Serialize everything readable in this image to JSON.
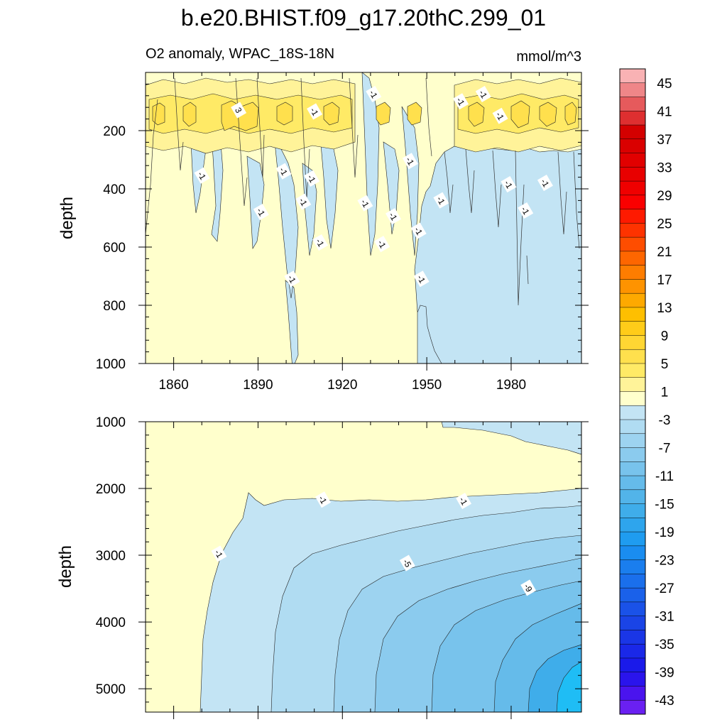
{
  "chart_data": [
    {
      "type": "heatmap",
      "name": "upper-ocean",
      "title": "b.e20.BHIST.f09_g17.20thC.299_01",
      "left_label": "O2 anomaly, WPAC_18S-18N",
      "right_label": "mmol/m^3",
      "xlabel": "",
      "ylabel": "depth",
      "xlim": [
        1850,
        2005
      ],
      "ylim": [
        1000,
        0
      ],
      "x_ticks": [
        1860,
        1890,
        1920,
        1950,
        1980
      ],
      "y_ticks": [
        200,
        400,
        600,
        800,
        1000
      ],
      "contour_labels": [
        {
          "text": "-1",
          "x": 1870,
          "y": 355
        },
        {
          "text": "3",
          "x": 1883,
          "y": 130
        },
        {
          "text": "-1",
          "x": 1910,
          "y": 135
        },
        {
          "text": "-1",
          "x": 1899,
          "y": 340
        },
        {
          "text": "-1",
          "x": 1909,
          "y": 365
        },
        {
          "text": "-1",
          "x": 1906,
          "y": 445
        },
        {
          "text": "-1",
          "x": 1891,
          "y": 480
        },
        {
          "text": "-1",
          "x": 1912,
          "y": 585
        },
        {
          "text": "-1",
          "x": 1902,
          "y": 710
        },
        {
          "text": "-1",
          "x": 1931,
          "y": 75
        },
        {
          "text": "-1",
          "x": 1928,
          "y": 450
        },
        {
          "text": "-1",
          "x": 1938,
          "y": 495
        },
        {
          "text": "-1",
          "x": 1934,
          "y": 590
        },
        {
          "text": "-1",
          "x": 1944,
          "y": 305
        },
        {
          "text": "-1",
          "x": 1947,
          "y": 545
        },
        {
          "text": "-1",
          "x": 1948,
          "y": 710
        },
        {
          "text": "-1",
          "x": 1962,
          "y": 100
        },
        {
          "text": "-1",
          "x": 1955,
          "y": 440
        },
        {
          "text": "-1",
          "x": 1970,
          "y": 75
        },
        {
          "text": "-1",
          "x": 1976,
          "y": 150
        },
        {
          "text": "-1",
          "x": 1979,
          "y": 385
        },
        {
          "text": "-1",
          "x": 1985,
          "y": 475
        },
        {
          "text": "-1",
          "x": 1992,
          "y": 380
        }
      ]
    },
    {
      "type": "heatmap",
      "name": "deep-ocean",
      "xlabel": "",
      "ylabel": "depth",
      "xlim": [
        1850,
        2005
      ],
      "ylim": [
        5350,
        1000
      ],
      "y_ticks": [
        1000,
        2000,
        3000,
        4000,
        5000
      ],
      "contour_labels": [
        {
          "text": "-1",
          "x": 1876,
          "y": 2980
        },
        {
          "text": "-1",
          "x": 1913,
          "y": 2170
        },
        {
          "text": "-1",
          "x": 1963,
          "y": 2190
        },
        {
          "text": "-5",
          "x": 1943,
          "y": 3120
        },
        {
          "text": "-9",
          "x": 1986,
          "y": 3490
        }
      ]
    },
    {
      "type": "colorbar",
      "name": "colorbar",
      "levels": [
        47,
        45,
        43,
        41,
        39,
        37,
        35,
        33,
        31,
        29,
        27,
        25,
        23,
        21,
        19,
        17,
        15,
        13,
        11,
        9,
        7,
        5,
        3,
        1,
        -1,
        -3,
        -5,
        -7,
        -9,
        -11,
        -13,
        -15,
        -17,
        -19,
        -21,
        -23,
        -25,
        -27,
        -29,
        -31,
        -33,
        -35,
        -37,
        -39,
        -41,
        -43,
        -45
      ],
      "tick_labels": [
        "45",
        "41",
        "37",
        "33",
        "29",
        "25",
        "21",
        "17",
        "13",
        "9",
        "5",
        "1",
        "-3",
        "-7",
        "-11",
        "-15",
        "-19",
        "-23",
        "-27",
        "-31",
        "-35",
        "-39",
        "-43"
      ],
      "colors": [
        "#f9b2b4",
        "#ef8688",
        "#e65a5c",
        "#de2f30",
        "#d40000",
        "#da0000",
        "#e10000",
        "#e80000",
        "#f00000",
        "#fa0000",
        "#fe1a00",
        "#fe3300",
        "#fe4d00",
        "#fe6600",
        "#fe7d00",
        "#fe9300",
        "#fea900",
        "#febf00",
        "#ffcc19",
        "#ffd633",
        "#ffe04d",
        "#ffea66",
        "#fff399",
        "#ffffcc",
        "#c3e4f4",
        "#b0dcf2",
        "#9dd3f0",
        "#8bcbee",
        "#78c3ec",
        "#65bbea",
        "#52b4e9",
        "#3fadea",
        "#2ea5ed",
        "#1f9cf0",
        "#1a8df0",
        "#1a7eee",
        "#1a6fec",
        "#1a61ea",
        "#1a52e8",
        "#1a44e6",
        "#1a36e6",
        "#1a28e8",
        "#1a1aea",
        "#2a14ec",
        "#4a14ee",
        "#6a20f2"
      ]
    }
  ]
}
